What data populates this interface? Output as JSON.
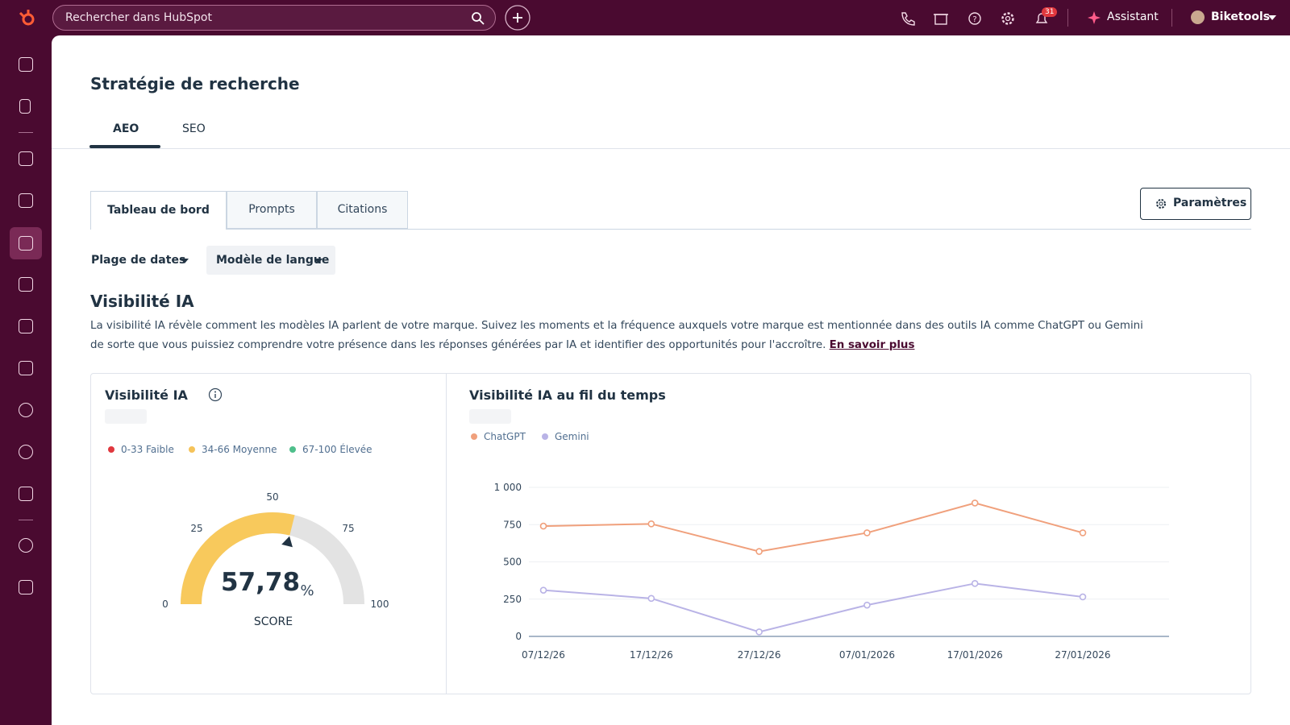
{
  "topbar": {
    "search_placeholder": "Rechercher dans HubSpot",
    "notifications": "31",
    "assistant": "Assistant",
    "account": "Biketools"
  },
  "header": {
    "title": "Stratégie de recherche",
    "tabs": [
      "AEO",
      "SEO"
    ]
  },
  "subtabs": [
    "Tableau de bord",
    "Prompts",
    "Citations"
  ],
  "settings_button": "Paramètres",
  "filters": [
    "Plage de dates",
    "Modèle de langue"
  ],
  "section": {
    "title": "Visibilité IA",
    "description_lines": [
      "La visibilité IA révèle comment les modèles IA parlent de votre marque. Suivez les moments et la fréquence auxquels votre marque est mentionnée dans des outils IA comme ChatGPT ou Gemini",
      "de sorte que vous puissiez comprendre votre présence dans les réponses générées par IA et identifier des opportunités pour l'accroître."
    ],
    "link": "En savoir plus"
  },
  "gauge": {
    "type": "gauge",
    "title": "Visibilité IA",
    "legend": [
      {
        "label": "0-33 Faible",
        "color": "#e0383e"
      },
      {
        "label": "34-66 Moyenne",
        "color": "#f5c35a"
      },
      {
        "label": "67-100 Élevée",
        "color": "#4fbf8b"
      }
    ],
    "value": 57.78,
    "value_label": "57,78",
    "unit": "%",
    "caption": "SCORE",
    "range": [
      0,
      100
    ],
    "ticks": [
      0,
      25,
      50,
      75,
      100
    ],
    "color": "#f8c95c",
    "track_color": "#e3e3e3"
  },
  "line_chart": {
    "type": "line",
    "title": "Visibilité IA au fil du temps",
    "categories": [
      "07/12/26",
      "17/12/26",
      "27/12/26",
      "07/01/2026",
      "17/01/2026",
      "27/01/2026"
    ],
    "series": [
      {
        "name": "ChatGPT",
        "color": "#f0a07c",
        "values": [
          740,
          755,
          570,
          695,
          895,
          695
        ]
      },
      {
        "name": "Gemini",
        "color": "#b9b3e6",
        "values": [
          310,
          255,
          30,
          210,
          355,
          265
        ]
      }
    ],
    "ylim": [
      0,
      1000
    ],
    "yticks": [
      0,
      250,
      500,
      750,
      {
        "value": 1000,
        "label": "1 000"
      }
    ],
    "grid": true
  }
}
